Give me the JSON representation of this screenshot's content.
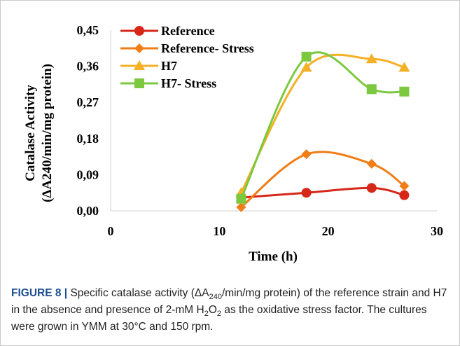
{
  "chart_data": {
    "type": "line",
    "title": "",
    "xlabel": "Time (h)",
    "ylabel_line1": "Catalase Activity",
    "ylabel_line2": "(ΔA240/min/mg  protein)",
    "xlim": [
      0,
      30
    ],
    "ylim": [
      0,
      0.45
    ],
    "x_ticks": [
      0,
      10,
      20,
      30
    ],
    "x_tick_labels": [
      "0",
      "10",
      "20",
      "30"
    ],
    "y_ticks": [
      0,
      0.09,
      0.18,
      0.27,
      0.36,
      0.45
    ],
    "y_tick_labels": [
      "0,00",
      "0,09",
      "0,18",
      "0,27",
      "0,36",
      "0,45"
    ],
    "grid": false,
    "legend_position": "top-left",
    "smooth": true,
    "series": [
      {
        "name": "Reference",
        "color": "#d62718",
        "marker": "circle",
        "x": [
          12,
          18,
          24,
          27
        ],
        "y": [
          0.033,
          0.045,
          0.057,
          0.039
        ]
      },
      {
        "name": "Reference- Stress",
        "color": "#f07d16",
        "marker": "diamond",
        "x": [
          12,
          18,
          24,
          27
        ],
        "y": [
          0.009,
          0.141,
          0.117,
          0.062
        ]
      },
      {
        "name": "H7",
        "color": "#f5b025",
        "marker": "triangle",
        "x": [
          12,
          18,
          24,
          27
        ],
        "y": [
          0.045,
          0.357,
          0.378,
          0.357
        ]
      },
      {
        "name": "H7- Stress",
        "color": "#7cc940",
        "marker": "square",
        "x": [
          12,
          18,
          24,
          27
        ],
        "y": [
          0.03,
          0.384,
          0.303,
          0.297
        ]
      }
    ]
  },
  "caption": {
    "label": "FIGURE 8 |",
    "text_1": " Specific catalase activity (ΔA",
    "sub_1": "240",
    "text_2": "/min/mg protein) of the reference strain and H7 in the absence and presence of 2-mM H",
    "sub_2": "2",
    "text_3": "O",
    "sub_3": "2",
    "text_4": " as the oxidative stress factor. The cultures were grown in YMM at 30°C and 150 rpm."
  }
}
